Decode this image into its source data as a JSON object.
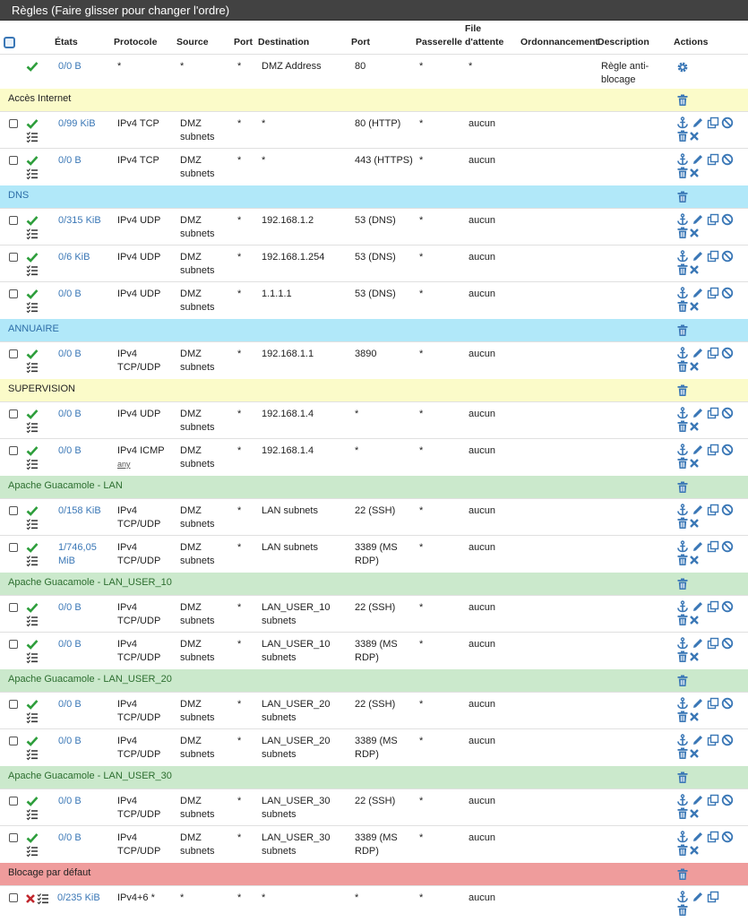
{
  "panel": {
    "title": "Règles (Faire glisser pour changer l'ordre)"
  },
  "columns": {
    "states": "États",
    "protocol": "Protocole",
    "source": "Source",
    "port_src": "Port",
    "destination": "Destination",
    "port_dst": "Port",
    "gateway": "Passerelle",
    "queue": "File d'attente",
    "schedule": "Ordonnancement",
    "description": "Description",
    "actions": "Actions"
  },
  "colors": {
    "internet": "#fbfbc9",
    "dns": "#b1e8f9",
    "annuaire": "#b1e8f9",
    "supervision": "#fbfbc9",
    "guacamole": "#cbe9cc",
    "block": "#ef9c9c",
    "pass_icon": "#2e9e3c",
    "block_icon": "#c1272d",
    "action_icon": "#3a77b6"
  },
  "rows": [
    {
      "type": "antilockout",
      "states": "0/0 B",
      "protocol": "*",
      "source": "*",
      "port_src": "*",
      "destination": "DMZ Address",
      "port_dst": "80",
      "gateway": "*",
      "queue": "*",
      "description": "Règle anti-\nblocage"
    },
    {
      "type": "separator",
      "label": "Accès Internet",
      "color": "internet"
    },
    {
      "type": "rule",
      "states": "0/99 KiB",
      "protocol": "IPv4 TCP",
      "source": "DMZ\nsubnets",
      "port_src": "*",
      "destination": "*",
      "port_dst": "80 (HTTP)",
      "gateway": "*",
      "queue": "aucun"
    },
    {
      "type": "rule",
      "states": "0/0 B",
      "protocol": "IPv4 TCP",
      "source": "DMZ\nsubnets",
      "port_src": "*",
      "destination": "*",
      "port_dst": "443 (HTTPS)",
      "gateway": "*",
      "queue": "aucun"
    },
    {
      "type": "separator",
      "label": "DNS",
      "color": "dns"
    },
    {
      "type": "rule",
      "states": "0/315 KiB",
      "protocol": "IPv4 UDP",
      "source": "DMZ\nsubnets",
      "port_src": "*",
      "destination": "192.168.1.2",
      "port_dst": "53 (DNS)",
      "gateway": "*",
      "queue": "aucun"
    },
    {
      "type": "rule",
      "states": "0/6 KiB",
      "protocol": "IPv4 UDP",
      "source": "DMZ\nsubnets",
      "port_src": "*",
      "destination": "192.168.1.254",
      "port_dst": "53 (DNS)",
      "gateway": "*",
      "queue": "aucun"
    },
    {
      "type": "rule",
      "states": "0/0 B",
      "protocol": "IPv4 UDP",
      "source": "DMZ\nsubnets",
      "port_src": "*",
      "destination": "1.1.1.1",
      "port_dst": "53 (DNS)",
      "gateway": "*",
      "queue": "aucun"
    },
    {
      "type": "separator",
      "label": "ANNUAIRE",
      "color": "annuaire"
    },
    {
      "type": "rule",
      "states": "0/0 B",
      "protocol": "IPv4\nTCP/UDP",
      "source": "DMZ\nsubnets",
      "port_src": "*",
      "destination": "192.168.1.1",
      "port_dst": "3890",
      "gateway": "*",
      "queue": "aucun"
    },
    {
      "type": "separator",
      "label": "SUPERVISION",
      "color": "supervision"
    },
    {
      "type": "rule",
      "states": "0/0 B",
      "protocol": "IPv4 UDP",
      "source": "DMZ\nsubnets",
      "port_src": "*",
      "destination": "192.168.1.4",
      "port_dst": "*",
      "gateway": "*",
      "queue": "aucun"
    },
    {
      "type": "rule",
      "states": "0/0 B",
      "protocol": "IPv4 ICMP",
      "protocol_sub": "any",
      "source": "DMZ\nsubnets",
      "port_src": "*",
      "destination": "192.168.1.4",
      "port_dst": "*",
      "gateway": "*",
      "queue": "aucun"
    },
    {
      "type": "separator",
      "label": "Apache Guacamole - LAN",
      "color": "guacamole"
    },
    {
      "type": "rule",
      "states": "0/158 KiB",
      "protocol": "IPv4\nTCP/UDP",
      "source": "DMZ\nsubnets",
      "port_src": "*",
      "destination": "LAN subnets",
      "port_dst": "22 (SSH)",
      "gateway": "*",
      "queue": "aucun"
    },
    {
      "type": "rule",
      "states": "1/746,05\nMiB",
      "protocol": "IPv4\nTCP/UDP",
      "source": "DMZ\nsubnets",
      "port_src": "*",
      "destination": "LAN subnets",
      "port_dst": "3389 (MS\nRDP)",
      "gateway": "*",
      "queue": "aucun"
    },
    {
      "type": "separator",
      "label": "Apache Guacamole - LAN_USER_10",
      "color": "guacamole"
    },
    {
      "type": "rule",
      "states": "0/0 B",
      "protocol": "IPv4\nTCP/UDP",
      "source": "DMZ\nsubnets",
      "port_src": "*",
      "destination": "LAN_USER_10\nsubnets",
      "port_dst": "22 (SSH)",
      "gateway": "*",
      "queue": "aucun"
    },
    {
      "type": "rule",
      "states": "0/0 B",
      "protocol": "IPv4\nTCP/UDP",
      "source": "DMZ\nsubnets",
      "port_src": "*",
      "destination": "LAN_USER_10\nsubnets",
      "port_dst": "3389 (MS\nRDP)",
      "gateway": "*",
      "queue": "aucun"
    },
    {
      "type": "separator",
      "label": "Apache Guacamole - LAN_USER_20",
      "color": "guacamole"
    },
    {
      "type": "rule",
      "states": "0/0 B",
      "protocol": "IPv4\nTCP/UDP",
      "source": "DMZ\nsubnets",
      "port_src": "*",
      "destination": "LAN_USER_20\nsubnets",
      "port_dst": "22 (SSH)",
      "gateway": "*",
      "queue": "aucun"
    },
    {
      "type": "rule",
      "states": "0/0 B",
      "protocol": "IPv4\nTCP/UDP",
      "source": "DMZ\nsubnets",
      "port_src": "*",
      "destination": "LAN_USER_20\nsubnets",
      "port_dst": "3389 (MS\nRDP)",
      "gateway": "*",
      "queue": "aucun"
    },
    {
      "type": "separator",
      "label": "Apache Guacamole - LAN_USER_30",
      "color": "guacamole"
    },
    {
      "type": "rule",
      "states": "0/0 B",
      "protocol": "IPv4\nTCP/UDP",
      "source": "DMZ\nsubnets",
      "port_src": "*",
      "destination": "LAN_USER_30\nsubnets",
      "port_dst": "22 (SSH)",
      "gateway": "*",
      "queue": "aucun"
    },
    {
      "type": "rule",
      "states": "0/0 B",
      "protocol": "IPv4\nTCP/UDP",
      "source": "DMZ\nsubnets",
      "port_src": "*",
      "destination": "LAN_USER_30\nsubnets",
      "port_dst": "3389 (MS\nRDP)",
      "gateway": "*",
      "queue": "aucun"
    },
    {
      "type": "separator",
      "label": "Blocage par défaut",
      "color": "block"
    },
    {
      "type": "block",
      "states": "0/235 KiB",
      "protocol": "IPv4+6 *",
      "source": "*",
      "port_src": "*",
      "destination": "*",
      "port_dst": "*",
      "gateway": "*",
      "queue": "aucun"
    }
  ]
}
